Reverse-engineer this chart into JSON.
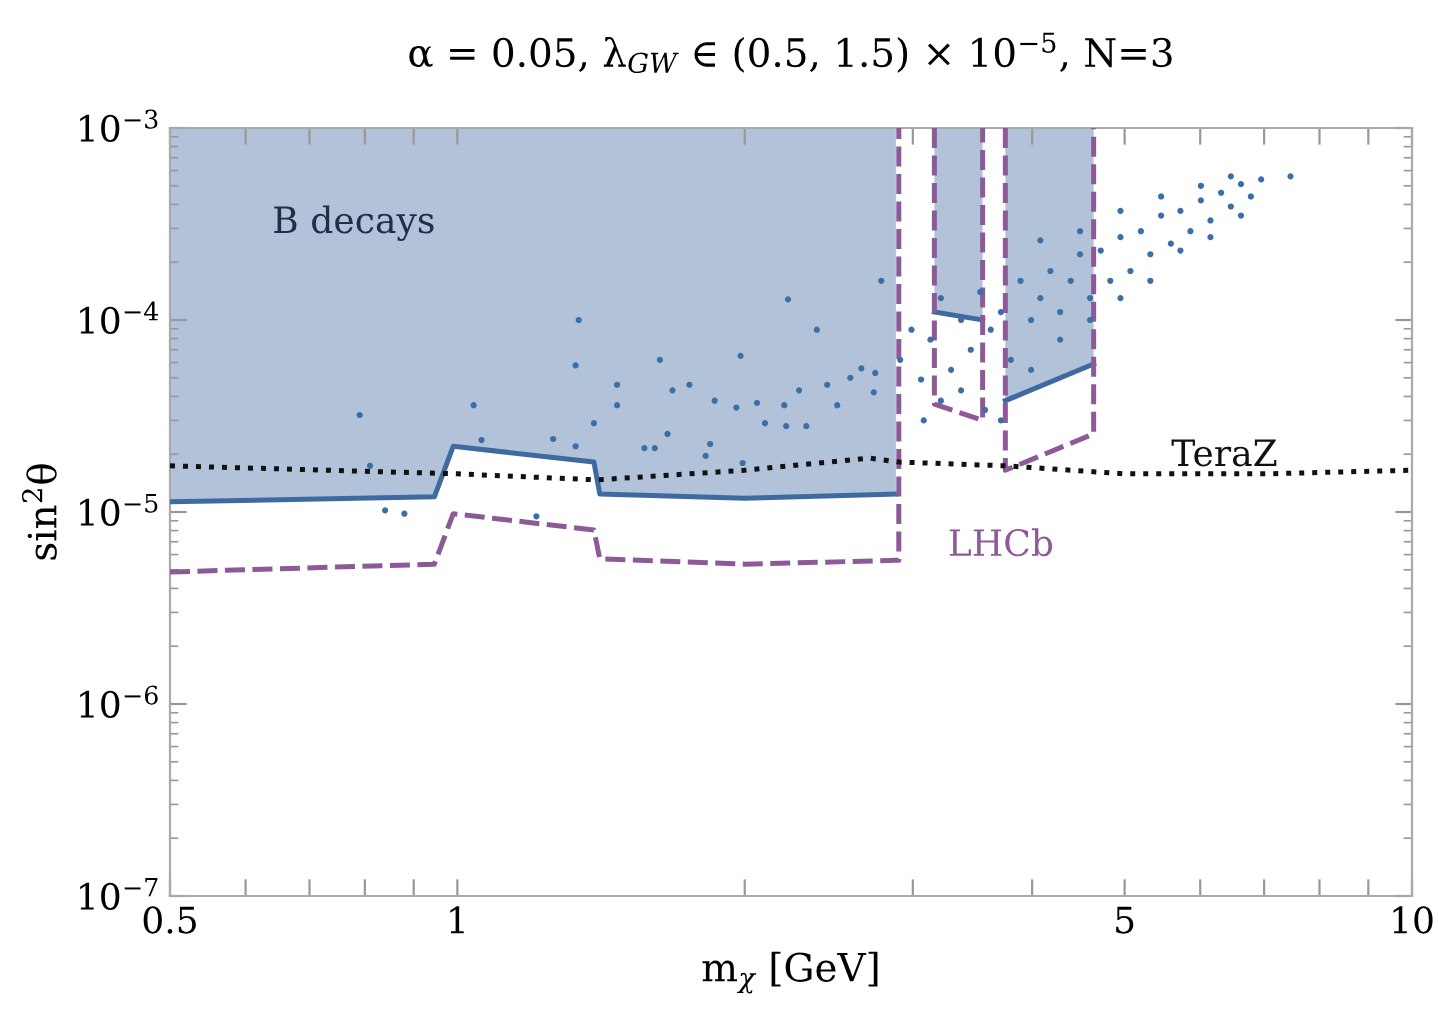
{
  "chart_data": {
    "type": "line",
    "title": "α = 0.05, λ$_{GW}$ ∈ (0.5, 1.5) × 10$^{−5}$, N=3",
    "xlabel": "m$_{χ}$ [GeV]",
    "ylabel": "sin$^{2}$θ",
    "log": "xy",
    "grid": false,
    "legend": false,
    "xlim": [
      0.5,
      10
    ],
    "ylim": [
      1e-07,
      0.001
    ],
    "xticks": [
      0.5,
      {
        "value": 0.6,
        "label": null
      },
      {
        "value": 0.7,
        "label": null
      },
      {
        "value": 0.8,
        "label": null
      },
      {
        "value": 0.9,
        "label": null
      },
      1,
      {
        "value": 2,
        "label": null
      },
      {
        "value": 3,
        "label": null
      },
      {
        "value": 4,
        "label": null
      },
      5,
      {
        "value": 6,
        "label": null
      },
      {
        "value": 7,
        "label": null
      },
      {
        "value": 8,
        "label": null
      },
      {
        "value": 9,
        "label": null
      },
      10
    ],
    "yticks": [
      {
        "value": 1e-07,
        "label": "10$^{−7}$"
      },
      {
        "value": 1e-06,
        "label": "10$^{−6}$"
      },
      {
        "value": 1e-05,
        "label": "10$^{−5}$"
      },
      {
        "value": 0.0001,
        "label": "10$^{−4}$"
      },
      {
        "value": 0.001,
        "label": "10$^{−3}$"
      }
    ],
    "series": [
      {
        "color": "#3f6aa0",
        "line_style": "solid",
        "marker": "none",
        "x": [
          0.5,
          0.946,
          0.99,
          1.39,
          1.41,
          2.0,
          2.88,
          3.0,
          3.16,
          3.55,
          3.65,
          3.75,
          4.64
        ],
        "values": [
          1.13e-05,
          1.2e-05,
          2.2e-05,
          1.82e-05,
          1.24e-05,
          1.18e-05,
          1.24e-05,
          null,
          0.00011,
          0.0001,
          null,
          3.8e-05,
          5.9e-05
        ],
        "lower": [
          1.13e-05,
          1.2e-05,
          2.2e-05,
          1.82e-05,
          1.24e-05,
          1.18e-05,
          1.24e-05,
          null,
          0.00011,
          0.0001,
          null,
          3.8e-05,
          5.9e-05
        ],
        "upper": [
          0.001,
          0.001,
          0.001,
          0.001,
          0.001,
          0.001,
          0.001,
          null,
          0.001,
          0.001,
          null,
          0.001,
          0.001
        ]
      },
      {
        "color": "#8c5a96",
        "line_style": "dashed",
        "marker": "none",
        "x": [
          0.5,
          0.946,
          0.99,
          1.39,
          1.41,
          2.0,
          2.88,
          2.9,
          2.9,
          3.0,
          3.16,
          3.16,
          3.55,
          3.55,
          3.65,
          3.75,
          3.75,
          4.64,
          4.64
        ],
        "values": [
          4.87e-06,
          5.35e-06,
          9.8e-06,
          8.06e-06,
          5.7e-06,
          5.35e-06,
          5.6e-06,
          5.6e-06,
          0.001,
          null,
          0.001,
          3.65e-05,
          3e-05,
          0.001,
          null,
          0.001,
          1.65e-05,
          2.55e-05,
          0.001
        ]
      },
      {
        "color": "#111111",
        "line_style": "dotted",
        "marker": "none",
        "x": [
          0.5,
          1.0,
          1.4,
          2.0,
          2.7,
          2.9,
          3.75,
          5.0,
          7.0,
          10.0
        ],
        "values": [
          1.74e-05,
          1.58e-05,
          1.47e-05,
          1.65e-05,
          1.91e-05,
          1.82e-05,
          1.74e-05,
          1.58e-05,
          1.58e-05,
          1.65e-05
        ]
      },
      {
        "type": "scatter",
        "color": "#3a6fa8",
        "marker": "circle",
        "x": [
          0.84,
          0.88,
          0.79,
          0.81,
          1.04,
          1.06,
          1.26,
          1.33,
          1.39,
          1.47,
          1.47,
          1.33,
          1.57,
          1.61,
          1.66,
          1.68,
          1.75,
          1.86,
          1.84,
          1.82,
          1.96,
          2.06,
          2.1,
          2.2,
          2.21,
          2.32,
          2.28,
          2.44,
          2.5,
          2.58,
          2.65,
          2.73,
          2.74,
          1.99,
          1.21,
          1.98,
          2.38,
          2.22,
          2.78,
          1.34,
          1.63,
          2.91,
          2.99,
          3.06,
          3.13,
          3.21,
          3.29,
          3.37,
          3.45,
          3.53,
          3.62,
          3.71,
          3.8,
          3.89,
          3.99,
          4.08,
          4.18,
          4.28,
          4.39,
          4.49,
          4.6,
          4.72,
          4.83,
          4.95,
          5.07,
          5.2,
          5.32,
          5.46,
          5.59,
          5.72,
          5.86,
          6.01,
          6.15,
          6.31,
          6.46,
          6.62,
          6.78,
          6.95,
          3.21,
          3.37,
          3.57,
          3.71,
          3.08,
          3.99,
          4.28,
          4.6,
          4.95,
          5.32,
          5.72,
          6.15,
          6.62,
          4.08,
          4.49,
          4.95,
          5.46,
          6.01,
          6.46,
          7.46
        ],
        "values": [
          1.02e-05,
          9.8e-06,
          3.2e-05,
          1.74e-05,
          3.6e-05,
          2.37e-05,
          2.4e-05,
          2.2e-05,
          2.9e-05,
          3.6e-05,
          4.6e-05,
          5.8e-05,
          2.15e-05,
          2.15e-05,
          2.55e-05,
          4.3e-05,
          4.6e-05,
          3.8e-05,
          2.26e-05,
          1.96e-05,
          3.5e-05,
          3.7e-05,
          2.9e-05,
          3.6e-05,
          2.8e-05,
          2.8e-05,
          4.3e-05,
          4.6e-05,
          3.6e-05,
          5e-05,
          5.6e-05,
          4.2e-05,
          5.3e-05,
          1.8e-05,
          9.5e-06,
          6.5e-05,
          8.9e-05,
          0.000128,
          0.00016,
          0.0001,
          6.2e-05,
          6.2e-05,
          8.9e-05,
          4.9e-05,
          7.9e-05,
          0.00013,
          5.5e-05,
          0.0001,
          7e-05,
          0.00014,
          8.9e-05,
          0.00011,
          6.2e-05,
          0.00016,
          0.0001,
          0.00013,
          0.00018,
          0.00011,
          0.00016,
          0.00022,
          0.00013,
          0.00023,
          0.00016,
          0.00027,
          0.00018,
          0.00029,
          0.00022,
          0.00035,
          0.00025,
          0.00037,
          0.00029,
          0.00042,
          0.00033,
          0.00046,
          0.00039,
          0.00051,
          0.00044,
          0.00054,
          3.8e-05,
          4.3e-05,
          3.4e-05,
          3e-05,
          3e-05,
          5.5e-05,
          7.9e-05,
          0.0001,
          0.00013,
          0.00016,
          0.00023,
          0.00027,
          0.00035,
          0.00026,
          0.00029,
          0.00037,
          0.00044,
          0.0005,
          0.00056,
          0.00056
        ]
      }
    ],
    "annotations": [
      "B decays",
      "TeraZ",
      "LHCb"
    ]
  }
}
